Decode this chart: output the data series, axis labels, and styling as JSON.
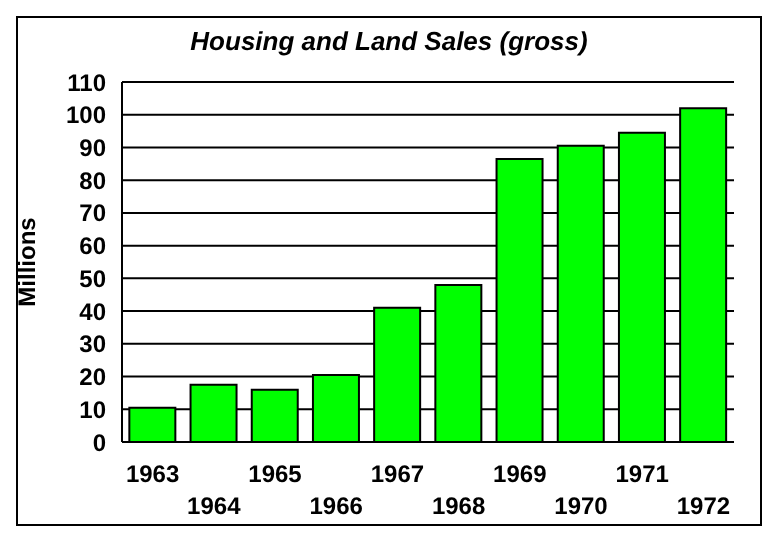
{
  "chart_data": {
    "type": "bar",
    "title": "Housing and Land Sales (gross)",
    "ylabel": "Millions",
    "categories": [
      "1963",
      "1964",
      "1965",
      "1966",
      "1967",
      "1968",
      "1969",
      "1970",
      "1971",
      "1972"
    ],
    "values": [
      10.5,
      17.5,
      16,
      20.5,
      41,
      48,
      86.5,
      90.5,
      94.5,
      102
    ],
    "color": "#00ff00",
    "ylim": [
      0,
      110
    ],
    "yticks": [
      0,
      10,
      20,
      30,
      40,
      50,
      60,
      70,
      80,
      90,
      100,
      110
    ],
    "grid": "y"
  }
}
